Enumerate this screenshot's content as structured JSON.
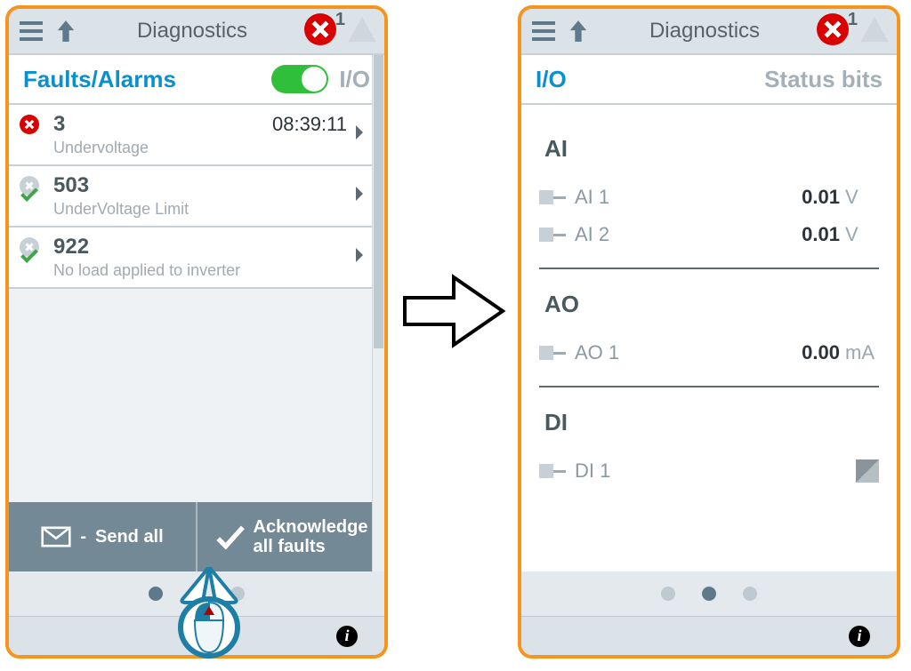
{
  "colors": {
    "accent_orange": "#f7941d",
    "header_bg": "#dbe3e8",
    "text_primary": "#4a5860",
    "text_muted": "#a3b0b8",
    "link_teal": "#0a8fcf",
    "toggle_green": "#2fbf3a",
    "error_red": "#d90000",
    "ok_green": "#3fa648",
    "button_bg": "#738995"
  },
  "left": {
    "title": "Diagnostics",
    "error_count": "1",
    "subhead_active": "Faults/Alarms",
    "subhead_muted": "I/O",
    "toggle_on": true,
    "faults": [
      {
        "icon": "error",
        "code": "3",
        "desc": "Undervoltage",
        "time": "08:39:11"
      },
      {
        "icon": "ok",
        "code": "503",
        "desc": "UnderVoltage Limit",
        "time": ""
      },
      {
        "icon": "ok",
        "code": "922",
        "desc": "No load applied to inverter",
        "time": ""
      }
    ],
    "btn_send": "Send all",
    "btn_ack_line1": "Acknowledge",
    "btn_ack_line2": "all faults",
    "page_dots": {
      "count": 3,
      "active": 0
    }
  },
  "right": {
    "title": "Diagnostics",
    "error_count": "1",
    "subhead_active": "I/O",
    "subhead_muted": "Status bits",
    "sections": {
      "ai": {
        "label": "AI",
        "rows": [
          {
            "name": "AI 1",
            "value": "0.01",
            "unit": "V"
          },
          {
            "name": "AI 2",
            "value": "0.01",
            "unit": "V"
          }
        ]
      },
      "ao": {
        "label": "AO",
        "rows": [
          {
            "name": "AO 1",
            "value": "0.00",
            "unit": "mA"
          }
        ]
      },
      "di": {
        "label": "DI",
        "rows": [
          {
            "name": "DI 1",
            "value": "",
            "unit": ""
          }
        ]
      }
    },
    "page_dots": {
      "count": 3,
      "active": 1
    }
  }
}
